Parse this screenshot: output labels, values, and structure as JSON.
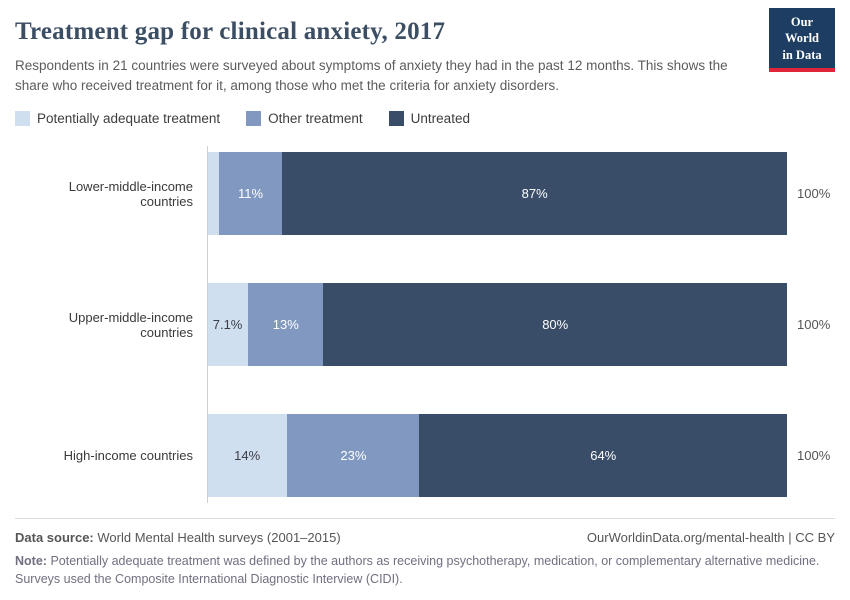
{
  "colors": {
    "logo_bg": "#1d3d63",
    "logo_accent": "#e0243a",
    "axis_line": "#cfcfcf"
  },
  "header": {
    "title": "Treatment gap for clinical anxiety, 2017",
    "subtitle": "Respondents in 21 countries were surveyed about symptoms of anxiety they had in the past 12 months. This shows the share who received treatment for it, among those who met the criteria for anxiety disorders.",
    "logo": {
      "line1": "Our World",
      "line2": "in Data"
    }
  },
  "chart_data": {
    "type": "bar",
    "orientation": "horizontal",
    "stacked": true,
    "xlim": [
      0,
      100
    ],
    "grid": false,
    "legend_position": "top",
    "categories": [
      "Lower-middle-income countries",
      "Upper-middle-income countries",
      "High-income countries"
    ],
    "series": [
      {
        "name": "Potentially adequate treatment",
        "color": "#d0dff0",
        "label_color": "#3d3d46",
        "values": [
          2,
          7.1,
          14
        ],
        "value_labels": [
          "",
          "7.1%",
          "14%"
        ]
      },
      {
        "name": "Other treatment",
        "color": "#8199c1",
        "label_color": "#ffffff",
        "values": [
          11,
          13,
          23
        ],
        "value_labels": [
          "11%",
          "13%",
          "23%"
        ]
      },
      {
        "name": "Untreated",
        "color": "#394d68",
        "label_color": "#ffffff",
        "values": [
          87,
          80,
          64
        ],
        "value_labels": [
          "87%",
          "80%",
          "64%"
        ]
      }
    ],
    "row_total_label": "100%"
  },
  "footer": {
    "datasource_label": "Data source:",
    "datasource": "World Mental Health surveys (2001–2015)",
    "link": "OurWorldinData.org/mental-health | CC BY",
    "note_label": "Note:",
    "note": "Potentially adequate treatment was defined by the authors as receiving psychotherapy, medication, or complementary alternative medicine. Surveys used the Composite International Diagnostic Interview (CIDI)."
  }
}
